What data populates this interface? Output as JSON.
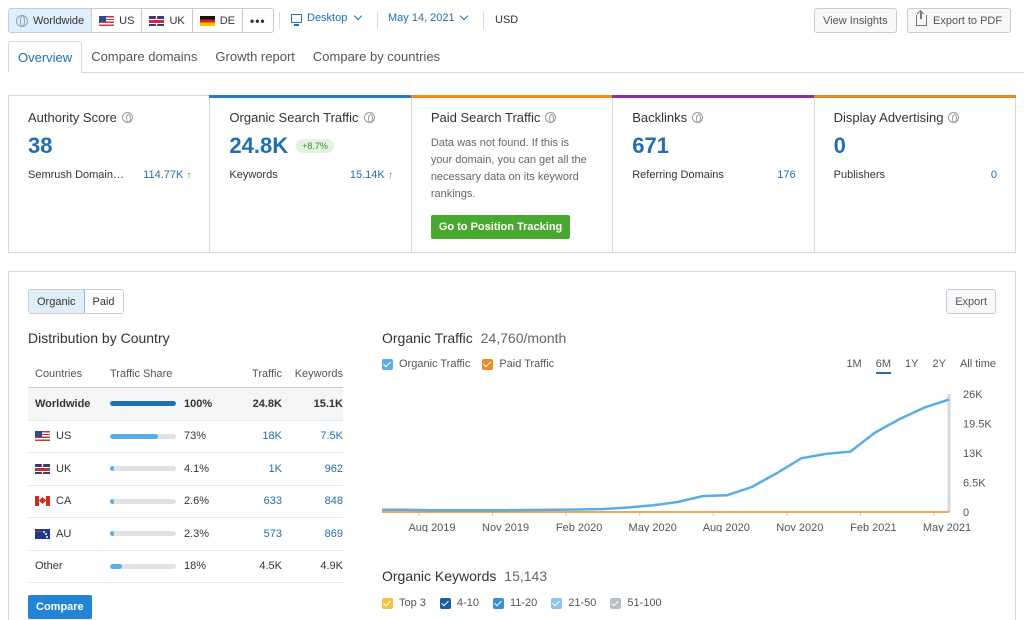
{
  "toolbar": {
    "databases": [
      {
        "label": "Worldwide",
        "icon": "globe-icon",
        "active": true
      },
      {
        "label": "US",
        "icon": "flag-us-icon"
      },
      {
        "label": "UK",
        "icon": "flag-uk-icon"
      },
      {
        "label": "DE",
        "icon": "flag-de-icon"
      }
    ],
    "more_label": "•••",
    "device": "Desktop",
    "date": "May 14, 2021",
    "currency": "USD",
    "view_insights": "View Insights",
    "export_pdf": "Export to PDF"
  },
  "tabs": [
    {
      "label": "Overview",
      "active": true
    },
    {
      "label": "Compare domains"
    },
    {
      "label": "Growth report"
    },
    {
      "label": "Compare by countries"
    }
  ],
  "metrics": {
    "authority": {
      "title": "Authority Score",
      "value": "38",
      "sub_label": "Semrush Domain…",
      "sub_value": "114.77K",
      "color": "#d6d9dd"
    },
    "organic": {
      "title": "Organic Search Traffic",
      "value": "24.8K",
      "badge": "+8.7%",
      "sub_label": "Keywords",
      "sub_value": "15.14K",
      "color": "#2b7bc4"
    },
    "paid": {
      "title": "Paid Search Traffic",
      "message": "Data was not found. If this is your domain, you can get all the necessary data on its keyword rankings.",
      "button": "Go to Position Tracking",
      "color": "#f08a24"
    },
    "backlinks": {
      "title": "Backlinks",
      "value": "671",
      "sub_label": "Referring Domains",
      "sub_value": "176",
      "color": "#8a2f9e"
    },
    "display": {
      "title": "Display Advertising",
      "value": "0",
      "sub_label": "Publishers",
      "sub_value": "0",
      "color": "#e08a2a"
    }
  },
  "panel": {
    "seg_organic": "Organic",
    "seg_paid": "Paid",
    "export": "Export",
    "dist_title": "Distribution by Country",
    "dist_headers": {
      "country": "Countries",
      "share": "Traffic Share",
      "traffic": "Traffic",
      "keywords": "Keywords"
    },
    "dist_rows": [
      {
        "country": "Worldwide",
        "flag": "",
        "share": 1.0,
        "pct": "100%",
        "traffic": "24.8K",
        "keywords": "15.1K"
      },
      {
        "country": "US",
        "flag": "flag-us-icon",
        "share": 0.73,
        "pct": "73%",
        "traffic": "18K",
        "keywords": "7.5K"
      },
      {
        "country": "UK",
        "flag": "flag-uk-icon",
        "share": 0.041,
        "pct": "4.1%",
        "traffic": "1K",
        "keywords": "962"
      },
      {
        "country": "CA",
        "flag": "flag-ca-icon",
        "share": 0.026,
        "pct": "2.6%",
        "traffic": "633",
        "keywords": "848"
      },
      {
        "country": "AU",
        "flag": "flag-au-icon",
        "share": 0.023,
        "pct": "2.3%",
        "traffic": "573",
        "keywords": "869"
      },
      {
        "country": "Other",
        "flag": "",
        "share": 0.18,
        "pct": "18%",
        "traffic": "4.5K",
        "keywords": "4.9K"
      }
    ],
    "compare": "Compare",
    "traffic_title": "Organic Traffic",
    "traffic_sub": "24,760/month",
    "legend_organic": "Organic Traffic",
    "legend_paid": "Paid Traffic",
    "ranges": [
      {
        "label": "1M"
      },
      {
        "label": "6M",
        "selected": true
      },
      {
        "label": "1Y"
      },
      {
        "label": "2Y"
      },
      {
        "label": "All time"
      }
    ],
    "keywords_title": "Organic Keywords",
    "keywords_sub": "15,143",
    "keyword_legend": [
      {
        "label": "Top 3",
        "color": "#f5c342"
      },
      {
        "label": "4-10",
        "color": "#1a5d9c"
      },
      {
        "label": "11-20",
        "color": "#3b8fd6"
      },
      {
        "label": "21-50",
        "color": "#8cc4ef"
      },
      {
        "label": "51-100",
        "color": "#b9bec4"
      }
    ]
  },
  "colors": {
    "accent": "#1f6fb2",
    "organic_line": "#5aaee6",
    "paid_line": "#f08a24"
  },
  "chart_data": {
    "type": "line",
    "title": "Organic Traffic",
    "x_ticks": [
      "Aug 2019",
      "Nov 2019",
      "Feb 2020",
      "May 2020",
      "Aug 2020",
      "Nov 2020",
      "Feb 2021",
      "May 2021"
    ],
    "y_ticks": [
      "26K",
      "19.5K",
      "13K",
      "6.5K",
      "0"
    ],
    "ylim": [
      0,
      26000
    ],
    "x": [
      "2019-06",
      "2019-07",
      "2019-08",
      "2019-09",
      "2019-10",
      "2019-11",
      "2019-12",
      "2020-01",
      "2020-02",
      "2020-03",
      "2020-04",
      "2020-05",
      "2020-06",
      "2020-07",
      "2020-08",
      "2020-09",
      "2020-10",
      "2020-11",
      "2020-12",
      "2021-01",
      "2021-02",
      "2021-03",
      "2021-04",
      "2021-05"
    ],
    "series": [
      {
        "name": "Organic Traffic",
        "values": [
          500,
          500,
          400,
          400,
          400,
          400,
          450,
          500,
          550,
          650,
          1000,
          1500,
          2200,
          3500,
          3700,
          5500,
          8500,
          11800,
          12800,
          13300,
          17500,
          20500,
          23000,
          24760
        ]
      },
      {
        "name": "Paid Traffic",
        "values": [
          0,
          0,
          0,
          0,
          0,
          0,
          0,
          0,
          0,
          0,
          0,
          0,
          0,
          0,
          0,
          0,
          0,
          0,
          0,
          0,
          0,
          0,
          0,
          0
        ]
      }
    ],
    "legend": "top-left",
    "grid": false
  }
}
